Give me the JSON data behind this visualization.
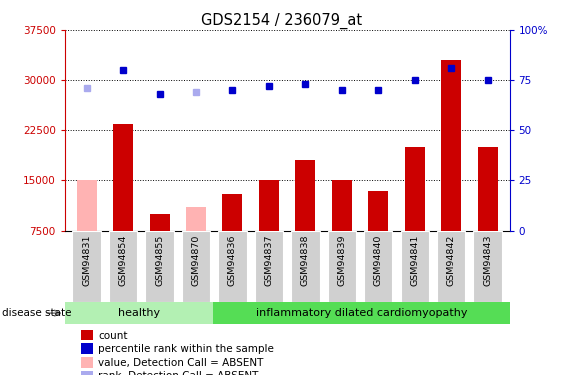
{
  "title": "GDS2154 / 236079_at",
  "samples": [
    "GSM94831",
    "GSM94854",
    "GSM94855",
    "GSM94870",
    "GSM94836",
    "GSM94837",
    "GSM94838",
    "GSM94839",
    "GSM94840",
    "GSM94841",
    "GSM94842",
    "GSM94843"
  ],
  "bar_values": [
    15000,
    23500,
    10000,
    11000,
    13000,
    15000,
    18000,
    15000,
    13500,
    20000,
    33000,
    20000
  ],
  "bar_absent": [
    true,
    false,
    false,
    true,
    false,
    false,
    false,
    false,
    false,
    false,
    false,
    false
  ],
  "dot_values": [
    71,
    80,
    68,
    69,
    70,
    72,
    73,
    70,
    70,
    75,
    81,
    75
  ],
  "dot_absent": [
    true,
    false,
    false,
    true,
    false,
    false,
    false,
    false,
    false,
    false,
    false,
    false
  ],
  "bar_color_present": "#cc0000",
  "bar_color_absent": "#ffb3b3",
  "dot_color_present": "#0000cc",
  "dot_color_absent": "#aaaaee",
  "ylim_left": [
    7500,
    37500
  ],
  "ylim_right": [
    0,
    100
  ],
  "yticks_left": [
    7500,
    15000,
    22500,
    30000,
    37500
  ],
  "yticks_right": [
    0,
    25,
    50,
    75,
    100
  ],
  "ytick_labels_right": [
    "0",
    "25",
    "50",
    "75",
    "100%"
  ],
  "healthy_label": "healthy",
  "disease_label": "inflammatory dilated cardiomyopathy",
  "disease_state_label": "disease state",
  "healthy_color": "#b3f0b3",
  "disease_color": "#55dd55",
  "legend_items": [
    {
      "label": "count",
      "color": "#cc0000"
    },
    {
      "label": "percentile rank within the sample",
      "color": "#0000cc"
    },
    {
      "label": "value, Detection Call = ABSENT",
      "color": "#ffb3b3"
    },
    {
      "label": "rank, Detection Call = ABSENT",
      "color": "#aaaaee"
    }
  ],
  "left_tick_color": "#cc0000",
  "right_tick_color": "#0000cc",
  "n_healthy": 4,
  "n_disease": 8
}
